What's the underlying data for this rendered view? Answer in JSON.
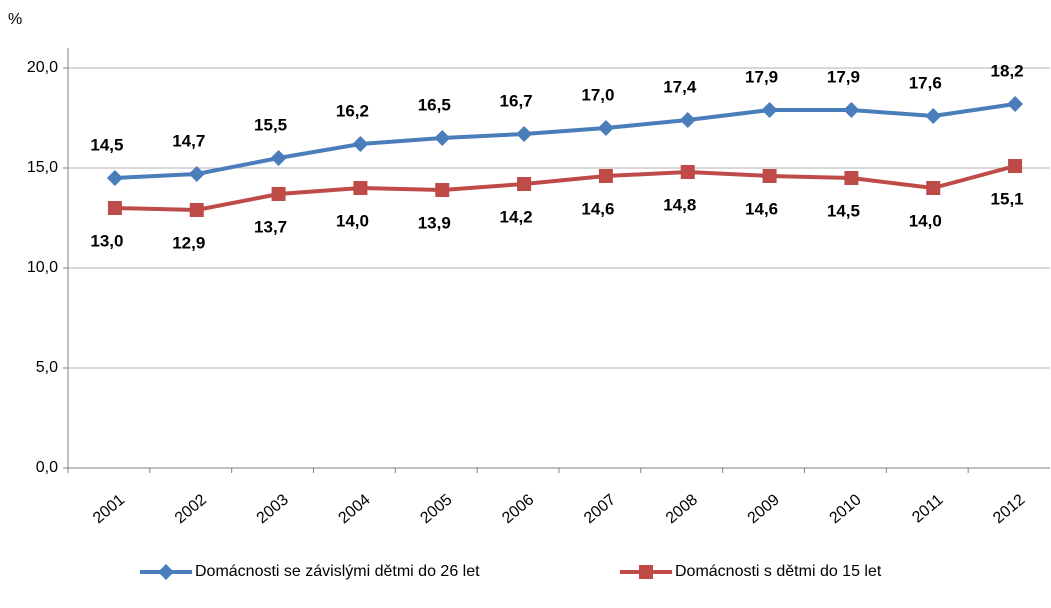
{
  "chart_data": {
    "type": "line",
    "y_label": "%",
    "categories": [
      "2001",
      "2002",
      "2003",
      "2004",
      "2005",
      "2006",
      "2007",
      "2008",
      "2009",
      "2010",
      "2011",
      "2012"
    ],
    "series": [
      {
        "name": "Domácnosti se závislými dětmi do 26 let",
        "color": "#4a7ebb",
        "marker": "diamond",
        "values": [
          14.5,
          14.7,
          15.5,
          16.2,
          16.5,
          16.7,
          17.0,
          17.4,
          17.9,
          17.9,
          17.6,
          18.2
        ],
        "value_labels": [
          "14,5",
          "14,7",
          "15,5",
          "16,2",
          "16,5",
          "16,7",
          "17,0",
          "17,4",
          "17,9",
          "17,9",
          "17,6",
          "18,2"
        ]
      },
      {
        "name": "Domácnosti s dětmi do 15 let",
        "color": "#be4b48",
        "marker": "square",
        "values": [
          13.0,
          12.9,
          13.7,
          14.0,
          13.9,
          14.2,
          14.6,
          14.8,
          14.6,
          14.5,
          14.0,
          15.1
        ],
        "value_labels": [
          "13,0",
          "12,9",
          "13,7",
          "14,0",
          "13,9",
          "14,2",
          "14,6",
          "14,8",
          "14,6",
          "14,5",
          "14,0",
          "15,1"
        ]
      }
    ],
    "ylim": [
      0,
      20
    ],
    "yticks": [
      {
        "value": 0,
        "label": "0,0"
      },
      {
        "value": 5,
        "label": "5,0"
      },
      {
        "value": 10,
        "label": "10,0"
      },
      {
        "value": 15,
        "label": "15,0"
      },
      {
        "value": 20,
        "label": "20,0"
      }
    ],
    "grid": true,
    "legend": "bottom"
  }
}
